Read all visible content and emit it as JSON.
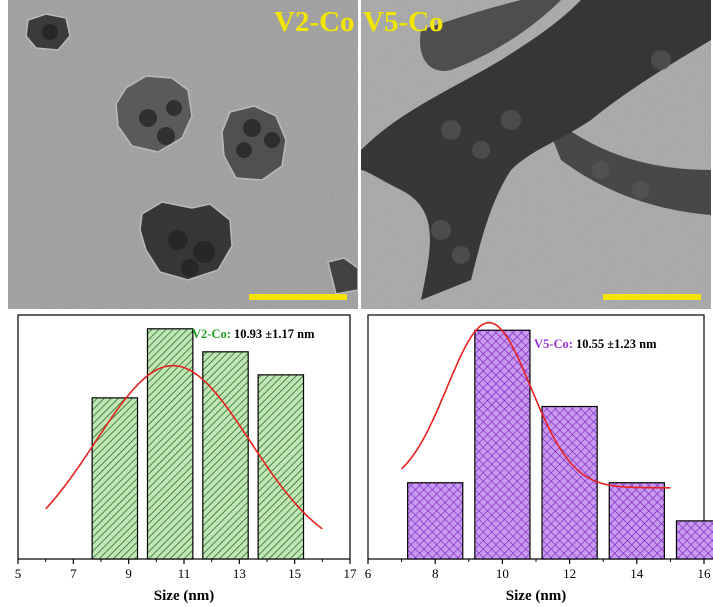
{
  "panels": {
    "tem_left": {
      "label": "V2-Co",
      "scalebar_color": "#f5e400"
    },
    "tem_right": {
      "label": "V5-Co",
      "scalebar_color": "#f5e400"
    }
  },
  "chart_data": [
    {
      "type": "bar",
      "title": "",
      "annotation": {
        "sample": "V2-Co:",
        "value": " 10.93 ±1.17 nm",
        "sample_color": "#1f9e1f"
      },
      "xlabel": "Size (nm)",
      "ylabel": "",
      "xlim": [
        5,
        17
      ],
      "xticks": [
        5,
        7,
        9,
        11,
        13,
        15,
        17
      ],
      "bar_width": 2,
      "bar_fill": "#bfe6b4",
      "hatch_color": "#1b5e1b",
      "hatch": "diagonal",
      "bars": [
        {
          "x": 8.5,
          "value": 7
        },
        {
          "x": 10.5,
          "value": 10
        },
        {
          "x": 12.5,
          "value": 9
        },
        {
          "x": 14.5,
          "value": 8
        }
      ],
      "ylim": [
        0,
        10.6
      ],
      "fit_curve": {
        "type": "gaussian",
        "mean": 10.6,
        "sigma": 2.8,
        "amplitude": 8.4,
        "offset": 0,
        "x_range": [
          6,
          16
        ],
        "color": "#e8231f"
      }
    },
    {
      "type": "bar",
      "title": "",
      "annotation": {
        "sample": "V5-Co:",
        "value": " 10.55 ±1.23 nm",
        "sample_color": "#9a32d6"
      },
      "xlabel": "Size (nm)",
      "ylabel": "",
      "xlim": [
        6,
        16
      ],
      "xticks": [
        6,
        8,
        10,
        12,
        14,
        16
      ],
      "bar_width": 2,
      "bar_fill": "#c89af0",
      "hatch_color": "#7a1fbf",
      "hatch": "crosshatch",
      "bars": [
        {
          "x": 8,
          "value": 3
        },
        {
          "x": 10,
          "value": 9
        },
        {
          "x": 12,
          "value": 6
        },
        {
          "x": 14,
          "value": 3
        },
        {
          "x": 16,
          "value": 1.5
        }
      ],
      "ylim": [
        0,
        9.6
      ],
      "fit_curve": {
        "type": "gaussian",
        "mean": 9.6,
        "sigma": 1.25,
        "amplitude": 6.5,
        "offset": 2.8,
        "x_range": [
          7,
          15
        ],
        "color": "#e8231f"
      }
    }
  ]
}
